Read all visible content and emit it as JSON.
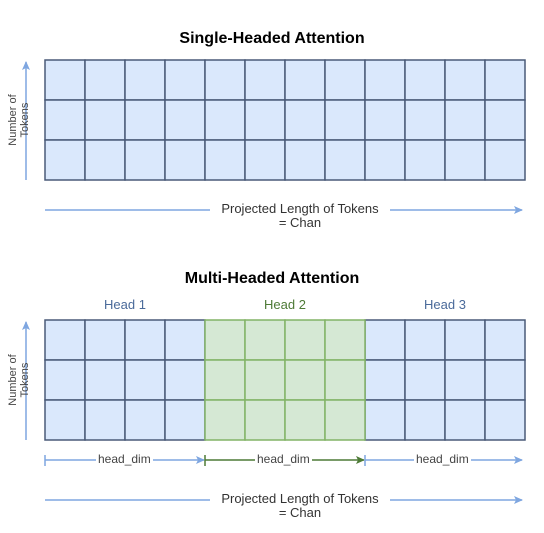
{
  "single": {
    "title": "Single-Headed Attention",
    "y_label_line1": "Number of",
    "y_label_line2": "Tokens",
    "x_label_line1": "Projected Length of Tokens",
    "x_label_line2": "= Chan",
    "rows": 3,
    "cols": 12
  },
  "multi": {
    "title": "Multi-Headed Attention",
    "y_label_line1": "Number of",
    "y_label_line2": "Tokens",
    "x_label_line1": "Projected Length of Tokens",
    "x_label_line2": "= Chan",
    "rows": 3,
    "cols_per_head": 4,
    "heads": [
      {
        "label": "Head 1",
        "dim_label": "head_dim",
        "color": "#dae8fc",
        "stroke": "#6c8ebf"
      },
      {
        "label": "Head 2",
        "dim_label": "head_dim",
        "color": "#d5e8d4",
        "stroke": "#82b366"
      },
      {
        "label": "Head 3",
        "dim_label": "head_dim",
        "color": "#dae8fc",
        "stroke": "#6c8ebf"
      }
    ]
  },
  "colors": {
    "grid_fill": "#dae8fc",
    "grid_stroke": "#4a5a78",
    "arrow": "#7ea6e0",
    "head2_text": "#4d7a36",
    "head_text": "#4a6a9a",
    "head2_arrow": "#4d7a36"
  }
}
